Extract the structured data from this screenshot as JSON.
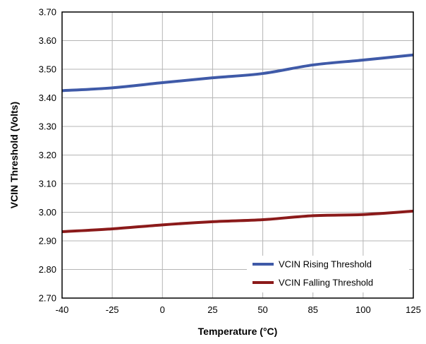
{
  "chart_data": {
    "type": "line",
    "title": "",
    "xlabel": "Temperature (°C)",
    "ylabel": "VCIN Threshold (Volts)",
    "x_tick_labels": [
      "-40",
      "-25",
      "0",
      "25",
      "50",
      "85",
      "100",
      "125"
    ],
    "y_tick_labels": [
      "2.70",
      "2.80",
      "2.90",
      "3.00",
      "3.10",
      "3.20",
      "3.30",
      "3.40",
      "3.50",
      "3.60",
      "3.70"
    ],
    "ylim": [
      2.7,
      3.7
    ],
    "grid": true,
    "legend_position": "bottom-right",
    "series": [
      {
        "name": "VCIN Rising Threshold",
        "color": "#3f5aa8",
        "x": [
          "-40",
          "-25",
          "0",
          "25",
          "50",
          "85",
          "100",
          "125"
        ],
        "values": [
          3.425,
          3.435,
          3.453,
          3.47,
          3.485,
          3.515,
          3.532,
          3.55
        ]
      },
      {
        "name": "VCIN Falling Threshold",
        "color": "#8b1a1a",
        "x": [
          "-40",
          "-25",
          "0",
          "25",
          "50",
          "85",
          "100",
          "125"
        ],
        "values": [
          2.932,
          2.942,
          2.956,
          2.967,
          2.974,
          2.988,
          2.992,
          3.004
        ]
      }
    ]
  }
}
